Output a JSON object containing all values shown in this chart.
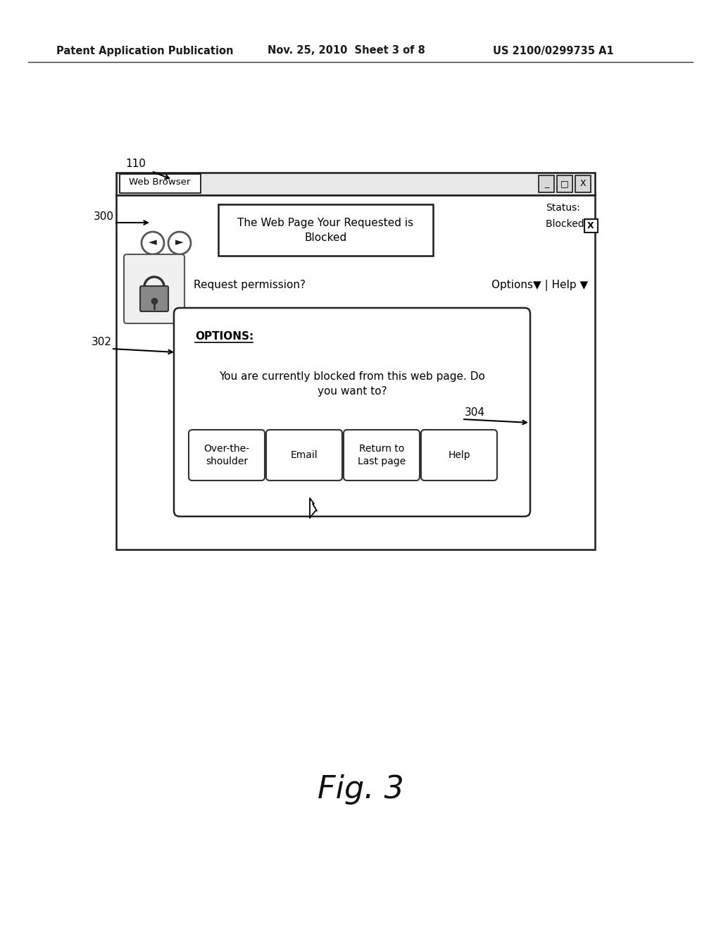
{
  "bg_color": "#ffffff",
  "header_left": "Patent Application Publication",
  "header_mid": "Nov. 25, 2010  Sheet 3 of 8",
  "header_right": "US 2100/0299735 A1",
  "fig_label": "Fig. 3",
  "label_110": "110",
  "label_300": "300",
  "label_302": "302",
  "label_304": "304",
  "browser_title_tab": "Web Browser",
  "blocked_line1": "The Web Page Your Requested is",
  "blocked_line2": "Blocked",
  "status_line1": "Status:",
  "status_line2": "Blocked",
  "request_perm": "Request permission?",
  "options_help": "Options▼ | Help ▼",
  "options_label": "OPTIONS:",
  "options_body_line1": "You are currently blocked from this web page. Do",
  "options_body_line2": "you want to?",
  "btn1": "Over-the-\nshoulder",
  "btn2": "Email",
  "btn3": "Return to\nLast page",
  "btn4": "Help"
}
